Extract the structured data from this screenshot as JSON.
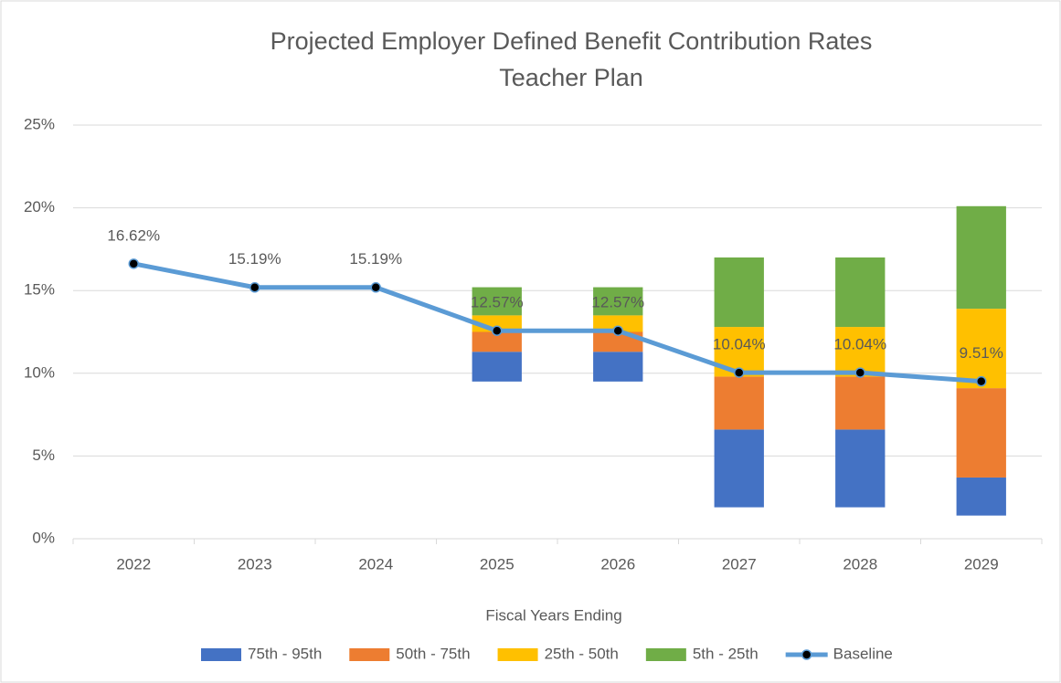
{
  "chart_data": {
    "type": "floating_stacked_bar_line",
    "title": "Projected Employer Defined Benefit Contribution Rates",
    "subtitle": "Teacher Plan",
    "x_label": "Fiscal Years Ending",
    "categories": [
      "2022",
      "2023",
      "2024",
      "2025",
      "2026",
      "2027",
      "2028",
      "2029"
    ],
    "base": [
      null,
      null,
      null,
      9.5,
      9.5,
      1.9,
      1.9,
      1.4
    ],
    "series": [
      {
        "name": "75th - 95th",
        "color": "#4472c4",
        "values": [
          null,
          null,
          null,
          1.8,
          1.8,
          4.7,
          4.7,
          2.3
        ]
      },
      {
        "name": "50th - 75th",
        "color": "#ed7d31",
        "values": [
          null,
          null,
          null,
          1.2,
          1.2,
          3.2,
          3.2,
          5.4
        ]
      },
      {
        "name": "25th - 50th",
        "color": "#ffc000",
        "values": [
          null,
          null,
          null,
          1.0,
          1.0,
          3.0,
          3.0,
          4.8
        ]
      },
      {
        "name": "5th - 25th",
        "color": "#70ad47",
        "values": [
          null,
          null,
          null,
          1.7,
          1.7,
          4.2,
          4.2,
          6.2
        ]
      }
    ],
    "line": {
      "name": "Baseline",
      "color": "#5b9bd5",
      "values": [
        16.62,
        15.19,
        15.19,
        12.57,
        12.57,
        10.04,
        10.04,
        9.51
      ],
      "value_labels": [
        "16.62%",
        "15.19%",
        "15.19%",
        "12.57%",
        "12.57%",
        "10.04%",
        "10.04%",
        "9.51%"
      ]
    },
    "ylim": [
      0,
      25
    ],
    "yticks": [
      {
        "value": 0,
        "label": "0%"
      },
      {
        "value": 5,
        "label": "5%"
      },
      {
        "value": 10,
        "label": "10%"
      },
      {
        "value": 15,
        "label": "15%"
      },
      {
        "value": 20,
        "label": "20%"
      },
      {
        "value": 25,
        "label": "25%"
      }
    ],
    "grid": true,
    "legend": "bottom"
  }
}
